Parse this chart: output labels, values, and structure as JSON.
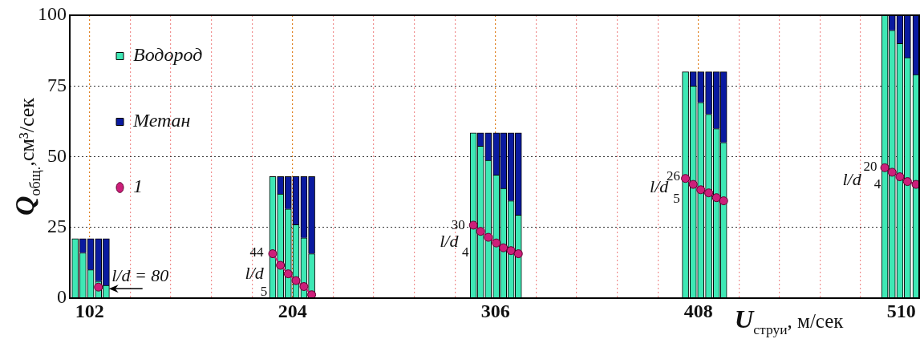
{
  "chart_data": {
    "type": "bar",
    "stacked": true,
    "xlabel": "U$_{струи}$, м/сек",
    "ylabel": "Q$_{общ.}$,см³/сек",
    "xlim": [
      92,
      519
    ],
    "xticks": [
      102,
      {
        "value": 122.4,
        "label": null
      },
      {
        "value": 142.8,
        "label": null
      },
      {
        "value": 163.2,
        "label": null
      },
      {
        "value": 183.6,
        "label": null
      },
      204,
      {
        "value": 224.4,
        "label": null
      },
      {
        "value": 244.8,
        "label": null
      },
      {
        "value": 265.2,
        "label": null
      },
      {
        "value": 285.6,
        "label": null
      },
      306,
      {
        "value": 326.4,
        "label": null
      },
      {
        "value": 346.8,
        "label": null
      },
      {
        "value": 367.2,
        "label": null
      },
      {
        "value": 387.6,
        "label": null
      },
      408,
      {
        "value": 428.4,
        "label": null
      },
      {
        "value": 448.8,
        "label": null
      },
      {
        "value": 469.2,
        "label": null
      },
      {
        "value": 489.6,
        "label": null
      },
      510
    ],
    "ylim": [
      0,
      100
    ],
    "yticks": [
      0,
      25,
      50,
      75,
      100
    ],
    "grid": true,
    "legend": "top left",
    "series": [
      {
        "name": "Водород",
        "color": "#3ee8b5",
        "x": [
          94.7,
          98.6,
          102.5,
          106.4,
          110.3,
          194.0,
          197.9,
          201.8,
          205.7,
          209.7,
          213.6,
          294.9,
          298.5,
          302.4,
          306.4,
          310.0,
          313.8,
          317.5,
          401.5,
          405.4,
          409.2,
          413.2,
          417.1,
          420.7,
          501.7,
          505.4,
          509.3,
          513.1,
          517.4
        ],
        "values": [
          21,
          16,
          10,
          6,
          4.5,
          43,
          36.8,
          31.5,
          26,
          21.3,
          15.7,
          58.4,
          53.7,
          48.7,
          43.5,
          38.8,
          34.4,
          29.4,
          80,
          75,
          69.2,
          65,
          59.9,
          55,
          100,
          94.7,
          90,
          85,
          79
        ]
      },
      {
        "name": "Метан",
        "color": "#0a1aa0",
        "x": [
          94.7,
          98.6,
          102.5,
          106.4,
          110.3,
          194.0,
          197.9,
          201.8,
          205.7,
          209.7,
          213.6,
          294.9,
          298.5,
          302.4,
          306.4,
          310.0,
          313.8,
          317.5,
          401.5,
          405.4,
          409.2,
          413.2,
          417.1,
          420.7,
          501.7,
          505.4,
          509.3,
          513.1,
          517.4
        ],
        "values": [
          0,
          5,
          11,
          15,
          16.5,
          0,
          6.2,
          11.5,
          17,
          21.7,
          27.3,
          0,
          4.7,
          9.7,
          14.9,
          19.6,
          24,
          29,
          0,
          5,
          10.8,
          15,
          20.1,
          25,
          0,
          5.3,
          10,
          15,
          21
        ]
      },
      {
        "name": "1",
        "type": "line",
        "color": "#cc1f7a",
        "marker": "circle",
        "x": [
          106.4,
          150,
          194.0,
          197.9,
          201.8,
          205.7,
          209.7,
          213.6,
          260,
          294.9,
          298.5,
          302.4,
          306.4,
          310.0,
          313.8,
          317.5,
          360,
          401.5,
          405.4,
          409.2,
          413.2,
          417.1,
          420.7,
          460,
          501.7,
          505.4,
          509.3,
          513.1,
          517.4
        ],
        "values": [
          3.9,
          null,
          15.7,
          11.6,
          8.6,
          6.2,
          4.1,
          1.2,
          null,
          25.8,
          23.6,
          21.5,
          19.5,
          17.8,
          16.8,
          15.7,
          null,
          42.3,
          40.2,
          38.3,
          37.2,
          35.5,
          34.4,
          null,
          46.1,
          44.5,
          42.9,
          41.2,
          40.2
        ]
      }
    ],
    "annotations": [
      {
        "text": "l/d = 80",
        "x": 106.4,
        "y": 3.9
      },
      {
        "text": "44",
        "x": 194.0,
        "y": 15.7
      },
      {
        "text": "l/d",
        "x": 203.75,
        "y": 7.4
      },
      "5",
      {
        "text": "30",
        "x": 294.9,
        "y": 25.8
      },
      {
        "text": "l/d",
        "x": 304.4,
        "y": 20.5
      },
      "4",
      {
        "text": "26",
        "x": 401.5,
        "y": 42.3
      },
      {
        "text": "l/d",
        "x": 411.2,
        "y": 37.75
      },
      "5",
      {
        "text": "20",
        "x": 501.7,
        "y": 46.1
      },
      {
        "text": "l/d",
        "x": 507.35,
        "y": 43.7
      },
      {
        "text": "4",
        "x": 517.4,
        "y": 40.2
      }
    ]
  }
}
